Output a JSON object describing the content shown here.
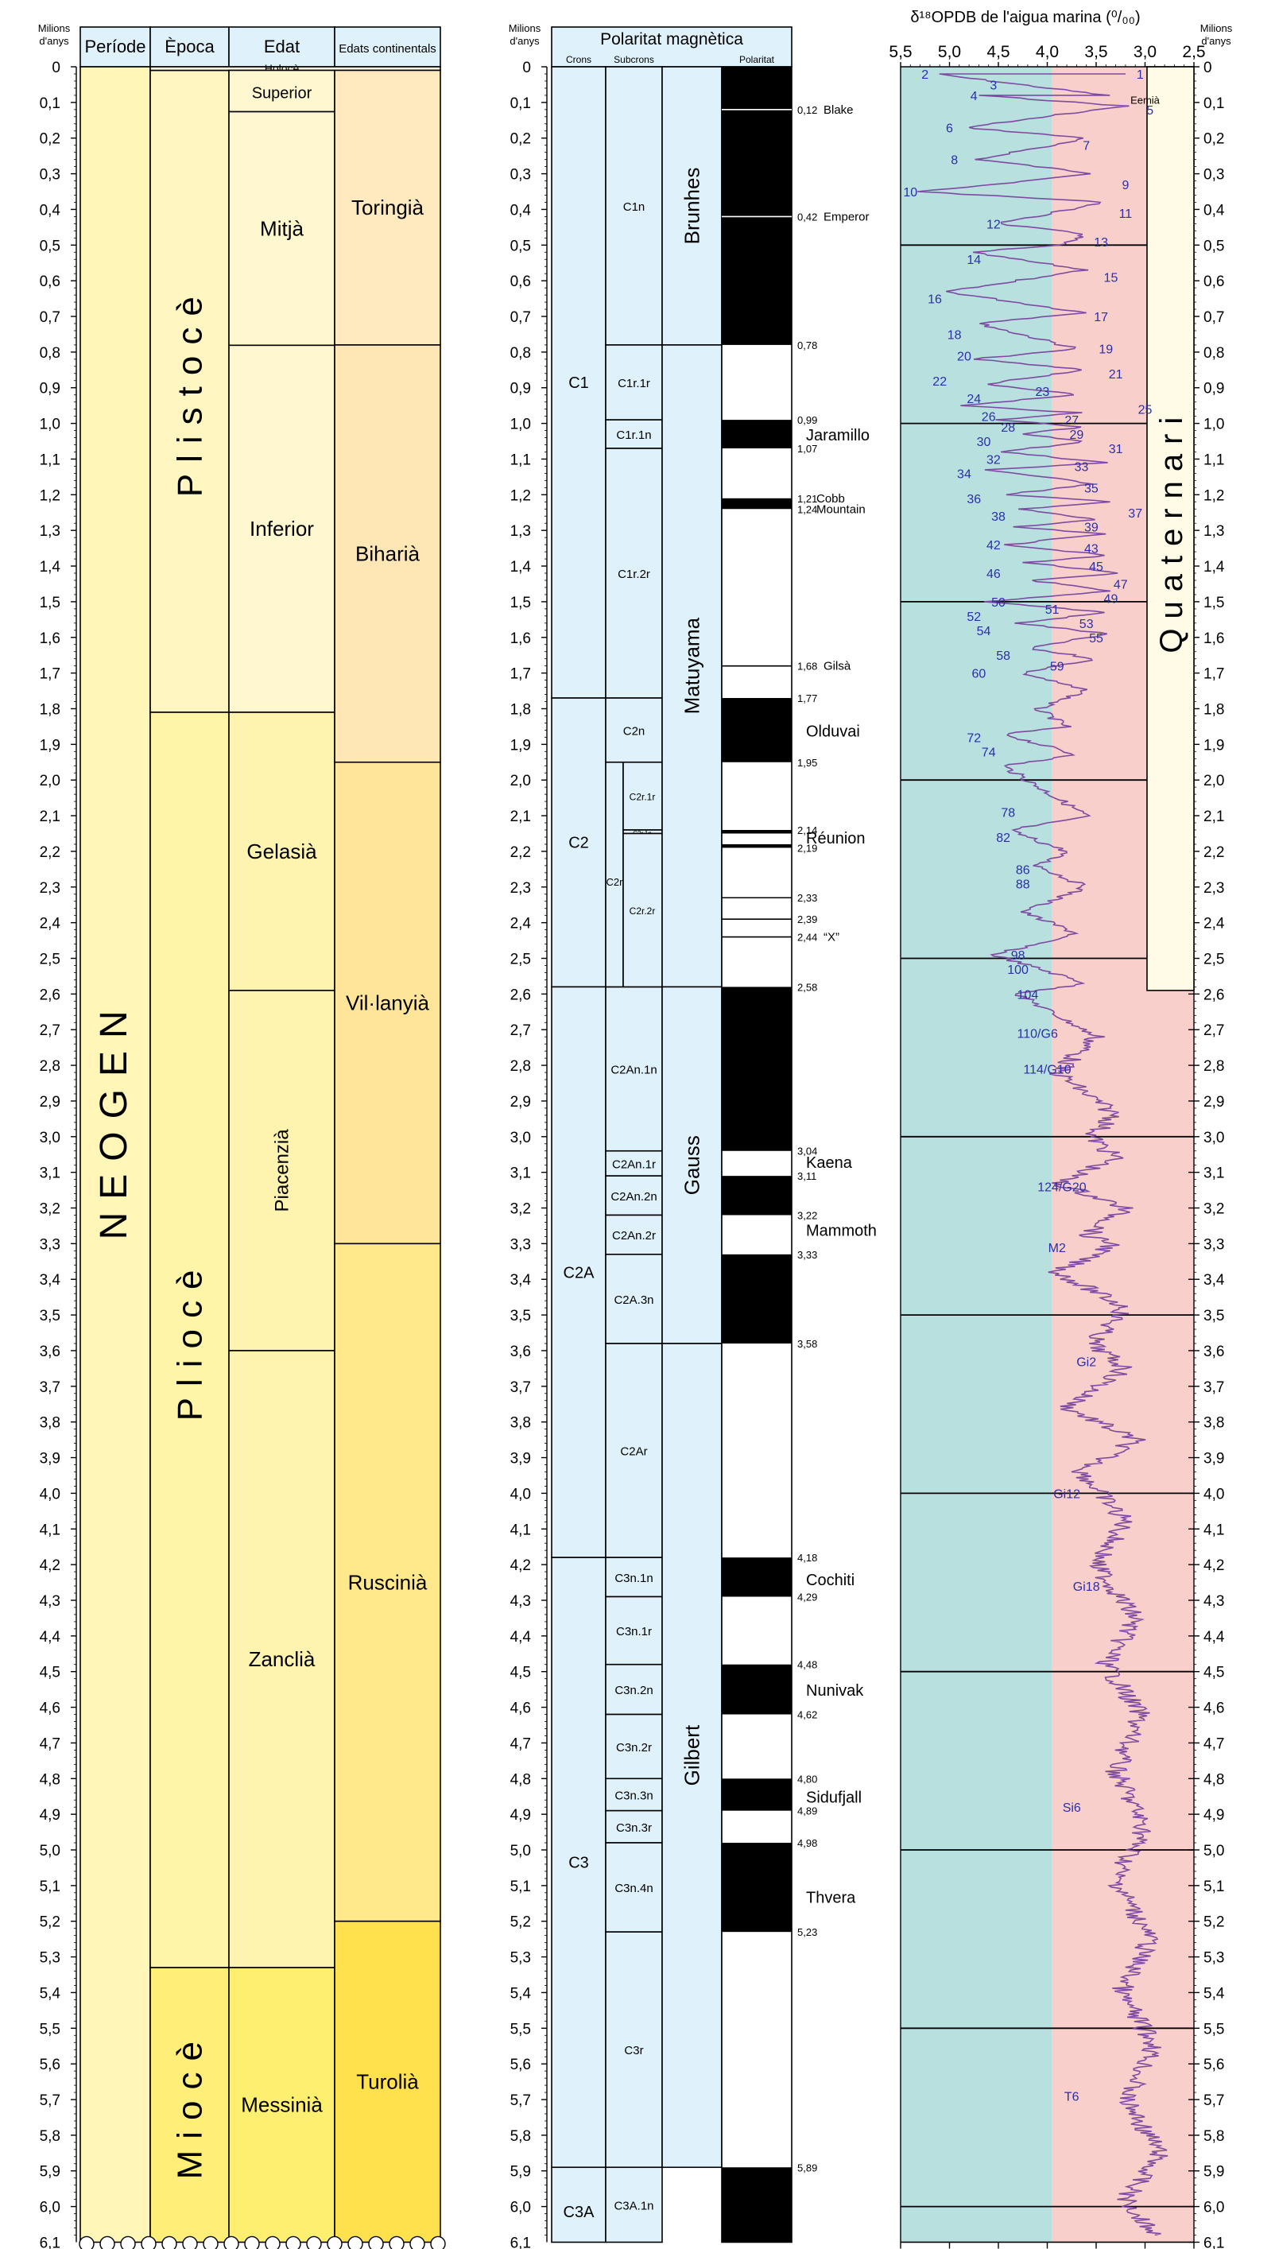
{
  "axis": {
    "unit_label": [
      "Milions",
      "d'anys"
    ],
    "ticks": [
      "0",
      "0,1",
      "0,2",
      "0,3",
      "0,4",
      "0,5",
      "0,6",
      "0,7",
      "0,8",
      "0,9",
      "1,0",
      "1,1",
      "1,2",
      "1,3",
      "1,4",
      "1,5",
      "1,6",
      "1,7",
      "1,8",
      "1,9",
      "2,0",
      "2,1",
      "2,2",
      "2,3",
      "2,4",
      "2,5",
      "2,6",
      "2,7",
      "2,8",
      "2,9",
      "3,0",
      "3,1",
      "3,2",
      "3,3",
      "3,4",
      "3,5",
      "3,6",
      "3,7",
      "3,8",
      "3,9",
      "4,0",
      "4,1",
      "4,2",
      "4,3",
      "4,4",
      "4,5",
      "4,6",
      "4,7",
      "4,8",
      "4,9",
      "5,0",
      "5,1",
      "5,2",
      "5,3",
      "5,4",
      "5,5",
      "5,6",
      "5,7",
      "5,8",
      "5,9",
      "6,0",
      "6,1"
    ]
  },
  "strat": {
    "headers": {
      "period": "Període",
      "epoch": "Època",
      "age": "Edat",
      "continental": "Edats continentals"
    },
    "period": {
      "label": "NEOGEN"
    },
    "epochs": [
      {
        "label": "Plistocè",
        "from": 0.01,
        "to": 1.81,
        "color": "#fff6c2"
      },
      {
        "label": "Pliocè",
        "from": 1.81,
        "to": 5.33,
        "color": "#fff5a8"
      },
      {
        "label": "Miocè",
        "from": 5.33,
        "to": 6.1,
        "color": "#ffef78"
      }
    ],
    "holocene": {
      "label": "Holocè",
      "to": 0.01
    },
    "ages": [
      {
        "label": "Superior",
        "from": 0.01,
        "to": 0.126,
        "color": "#fff7cf",
        "vertical": false
      },
      {
        "label": "Mitjà",
        "from": 0.126,
        "to": 0.781,
        "color": "#fff7cf",
        "vertical": false
      },
      {
        "label": "Inferior",
        "from": 0.781,
        "to": 1.81,
        "color": "#fff7cf",
        "vertical": false
      },
      {
        "label": "Gelasià",
        "from": 1.81,
        "to": 2.59,
        "color": "#fff3b0",
        "vertical": false
      },
      {
        "label": "Piacenzià",
        "from": 2.59,
        "to": 3.6,
        "color": "#fff3b0",
        "vertical": true
      },
      {
        "label": "Zanclià",
        "from": 3.6,
        "to": 5.33,
        "color": "#fff3b0",
        "vertical": false
      },
      {
        "label": "Messinià",
        "from": 5.33,
        "to": 6.1,
        "color": "#ffef70",
        "vertical": false
      }
    ],
    "continental": [
      {
        "label": "Toringià",
        "from": 0.01,
        "to": 0.78,
        "color": "#ffeac0"
      },
      {
        "label": "Biharià",
        "from": 0.78,
        "to": 1.95,
        "color": "#ffe6b5"
      },
      {
        "label": "Vil·lanyià",
        "from": 1.95,
        "to": 3.3,
        "color": "#ffe59a"
      },
      {
        "label": "Ruscinià",
        "from": 3.3,
        "to": 5.2,
        "color": "#ffe98a"
      },
      {
        "label": "Turolià",
        "from": 5.2,
        "to": 6.1,
        "color": "#ffe14d"
      }
    ]
  },
  "polarity": {
    "title": "Polaritat magnètica",
    "col_headers": {
      "crons": "Crons",
      "subcrons": "Subcrons",
      "polarity": "Polaritat"
    },
    "crons": [
      {
        "label": "C1",
        "from": 0,
        "to": 1.77
      },
      {
        "label": "C2",
        "from": 1.77,
        "to": 2.58
      },
      {
        "label": "C2A",
        "from": 2.58,
        "to": 4.18
      },
      {
        "label": "C3",
        "from": 4.18,
        "to": 5.89
      },
      {
        "label": "C3A",
        "from": 5.89,
        "to": 6.1
      }
    ],
    "subcrons": [
      {
        "label": "C1n",
        "from": 0,
        "to": 0.78
      },
      {
        "label": "C1r.1r",
        "from": 0.78,
        "to": 0.99
      },
      {
        "label": "C1r.1n",
        "from": 0.99,
        "to": 1.07
      },
      {
        "label": "C1r.2r",
        "from": 1.07,
        "to": 1.77
      },
      {
        "label": "C2n",
        "from": 1.77,
        "to": 1.95
      },
      {
        "label": "C2An.1n",
        "from": 2.58,
        "to": 3.04
      },
      {
        "label": "C2An.1r",
        "from": 3.04,
        "to": 3.11
      },
      {
        "label": "C2An.2n",
        "from": 3.11,
        "to": 3.22
      },
      {
        "label": "C2An.2r",
        "from": 3.22,
        "to": 3.33
      },
      {
        "label": "C2A.3n",
        "from": 3.33,
        "to": 3.58
      },
      {
        "label": "C2Ar",
        "from": 3.58,
        "to": 4.18
      },
      {
        "label": "C3n.1n",
        "from": 4.18,
        "to": 4.29
      },
      {
        "label": "C3n.1r",
        "from": 4.29,
        "to": 4.48
      },
      {
        "label": "C3n.2n",
        "from": 4.48,
        "to": 4.62
      },
      {
        "label": "C3n.2r",
        "from": 4.62,
        "to": 4.8
      },
      {
        "label": "C3n.3n",
        "from": 4.8,
        "to": 4.89
      },
      {
        "label": "C3n.3r",
        "from": 4.89,
        "to": 4.98
      },
      {
        "label": "C3n.4n",
        "from": 4.98,
        "to": 5.23
      },
      {
        "label": "C3r",
        "from": 5.23,
        "to": 5.89
      },
      {
        "label": "C3A.1n",
        "from": 5.89,
        "to": 6.1
      }
    ],
    "c2r": {
      "label": "C2r",
      "from": 1.95,
      "to": 2.58
    },
    "c2r_sub": [
      {
        "label": "C2r.1r",
        "from": 1.95,
        "to": 2.14
      },
      {
        "label": "C2r.1n",
        "from": 2.14,
        "to": 2.15
      },
      {
        "label": "C2r.2r",
        "from": 2.15,
        "to": 2.58
      }
    ],
    "chrons": [
      {
        "label": "Brunhes",
        "from": 0,
        "to": 0.78
      },
      {
        "label": "Matuyama",
        "from": 0.78,
        "to": 2.58
      },
      {
        "label": "Gauss",
        "from": 2.58,
        "to": 3.58
      },
      {
        "label": "Gilbert",
        "from": 3.58,
        "to": 5.89
      }
    ],
    "normal_bands": [
      [
        0,
        0.78
      ],
      [
        0.99,
        1.07
      ],
      [
        1.21,
        1.24
      ],
      [
        1.77,
        1.95
      ],
      [
        2.14,
        2.15
      ],
      [
        2.18,
        2.19
      ],
      [
        2.58,
        3.04
      ],
      [
        3.11,
        3.22
      ],
      [
        3.33,
        3.58
      ],
      [
        4.18,
        4.29
      ],
      [
        4.48,
        4.62
      ],
      [
        4.8,
        4.89
      ],
      [
        4.98,
        5.23
      ],
      [
        5.89,
        6.1
      ]
    ],
    "excursion_lines": [
      0.12,
      0.42,
      1.68,
      2.33,
      2.39,
      2.44
    ],
    "boundary_labels": [
      {
        "text": "0,12",
        "at": 0.12
      },
      {
        "text": "0,42",
        "at": 0.42
      },
      {
        "text": "0,78",
        "at": 0.78
      },
      {
        "text": "0,99",
        "at": 0.99
      },
      {
        "text": "1,07",
        "at": 1.07
      },
      {
        "text": "1,21",
        "at": 1.21
      },
      {
        "text": "1,24",
        "at": 1.24
      },
      {
        "text": "1,68",
        "at": 1.68
      },
      {
        "text": "1,77",
        "at": 1.77
      },
      {
        "text": "1,95",
        "at": 1.95
      },
      {
        "text": "2,14",
        "at": 2.14
      },
      {
        "text": "2,19",
        "at": 2.19
      },
      {
        "text": "2,33",
        "at": 2.33
      },
      {
        "text": "2,39",
        "at": 2.39
      },
      {
        "text": "2,44",
        "at": 2.44
      },
      {
        "text": "2,58",
        "at": 2.58
      },
      {
        "text": "3,04",
        "at": 3.04
      },
      {
        "text": "3,11",
        "at": 3.11
      },
      {
        "text": "3,22",
        "at": 3.22
      },
      {
        "text": "3,33",
        "at": 3.33
      },
      {
        "text": "3,58",
        "at": 3.58
      },
      {
        "text": "4,18",
        "at": 4.18
      },
      {
        "text": "4,29",
        "at": 4.29
      },
      {
        "text": "4,48",
        "at": 4.48
      },
      {
        "text": "4,62",
        "at": 4.62
      },
      {
        "text": "4,80",
        "at": 4.8
      },
      {
        "text": "4,89",
        "at": 4.89
      },
      {
        "text": "4,98",
        "at": 4.98
      },
      {
        "text": "5,23",
        "at": 5.23
      },
      {
        "text": "5,89",
        "at": 5.89
      }
    ],
    "event_labels": [
      {
        "text": "Blake",
        "at": 0.12,
        "size": "small"
      },
      {
        "text": "Emperor",
        "at": 0.42,
        "size": "small"
      },
      {
        "text": "Jaramillo",
        "at": 1.03,
        "size": "big"
      },
      {
        "text": "Cobb",
        "at": 1.21,
        "size": "small"
      },
      {
        "text": "Mountain",
        "at": 1.24,
        "size": "small"
      },
      {
        "text": "Gilsà",
        "at": 1.68,
        "size": "small"
      },
      {
        "text": "Olduvai",
        "at": 1.86,
        "size": "big"
      },
      {
        "text": "Réunion",
        "at": 2.16,
        "size": "big"
      },
      {
        "text": "“X”",
        "at": 2.44,
        "size": "small"
      },
      {
        "text": "Kaena",
        "at": 3.07,
        "size": "big"
      },
      {
        "text": "Mammoth",
        "at": 3.26,
        "size": "big"
      },
      {
        "text": "Cochiti",
        "at": 4.24,
        "size": "big"
      },
      {
        "text": "Nunivak",
        "at": 4.55,
        "size": "big"
      },
      {
        "text": "Sidufjall",
        "at": 4.85,
        "size": "big"
      },
      {
        "text": "Thvera",
        "at": 5.13,
        "size": "big"
      }
    ]
  },
  "chart_data": {
    "type": "line",
    "title": "δ¹⁸OPDB de l'aigua marina (⁰/₀₀)",
    "xlabel": "δ¹⁸OPDB de l'aigua marina (⁰/₀₀)",
    "ylabel": "Milions d'anys",
    "x_ticks": [
      "5,5",
      "5,0",
      "4,5",
      "4,0",
      "3,5",
      "3,0",
      "2,5"
    ],
    "xlim": [
      5.5,
      2.5
    ],
    "ylim": [
      0,
      6.1
    ],
    "x_reversed": true,
    "background": {
      "cold": "#b7e0df",
      "warm": "#f9cfcc"
    },
    "line_color": "#7d4ba0",
    "series": [
      {
        "x": [
          3.2,
          5.15,
          3.4,
          4.7,
          3.2,
          4.85,
          3.6,
          4.7,
          3.5,
          5.3,
          3.4,
          4.5,
          3.6,
          3.9,
          4.8,
          3.6,
          5.05,
          3.6,
          4.7,
          3.7,
          4.75,
          3.6,
          4.65,
          3.7,
          4.9,
          3.7,
          4.5,
          3.6,
          4.3,
          3.6,
          4.45,
          3.4,
          4.6,
          3.5,
          4.45,
          3.3,
          4.3,
          3.5,
          4.35,
          3.45,
          4.4,
          3.4,
          4.2,
          3.3,
          4.15,
          3.4,
          4.6,
          3.4,
          4.3,
          3.4,
          4.2,
          3.5,
          4.25,
          3.6,
          4.1,
          3.8,
          4.45,
          3.7,
          4.45,
          3.6,
          4.4,
          3.8,
          4.1,
          3.6,
          4.25,
          3.7,
          4.55,
          3.6,
          4.3,
          3.5,
          3.9,
          3.3,
          3.55,
          3.3,
          3.9,
          3.2,
          3.6,
          3.3,
          3.9,
          3.2,
          3.55,
          3.2,
          3.8,
          3.1,
          3.65,
          3.2,
          3.5,
          3.1,
          3.4,
          3.05,
          3.3,
          3.0,
          3.3,
          2.95,
          3.25,
          2.9,
          3.2,
          2.85,
          3.2,
          2.9
        ],
        "y": [
          0.02,
          0.02,
          0.08,
          0.08,
          0.11,
          0.17,
          0.2,
          0.26,
          0.3,
          0.35,
          0.38,
          0.44,
          0.47,
          0.5,
          0.52,
          0.57,
          0.63,
          0.69,
          0.72,
          0.79,
          0.82,
          0.85,
          0.89,
          0.92,
          0.95,
          0.97,
          0.99,
          1.01,
          1.03,
          1.05,
          1.08,
          1.11,
          1.13,
          1.17,
          1.2,
          1.22,
          1.24,
          1.27,
          1.29,
          1.31,
          1.34,
          1.37,
          1.39,
          1.42,
          1.44,
          1.47,
          1.5,
          1.53,
          1.56,
          1.59,
          1.63,
          1.66,
          1.7,
          1.75,
          1.8,
          1.85,
          1.87,
          1.93,
          1.96,
          2.1,
          2.14,
          2.2,
          2.24,
          2.3,
          2.37,
          2.43,
          2.49,
          2.57,
          2.6,
          2.72,
          2.82,
          2.94,
          3.0,
          3.06,
          3.13,
          3.2,
          3.28,
          3.3,
          3.38,
          3.48,
          3.58,
          3.65,
          3.76,
          3.85,
          3.94,
          4.08,
          4.2,
          4.35,
          4.48,
          4.62,
          4.78,
          4.94,
          5.08,
          5.25,
          5.4,
          5.55,
          5.7,
          5.85,
          5.98,
          6.08
        ]
      }
    ],
    "isotope_stage_labels": [
      {
        "text": "1",
        "x": 3.05,
        "y": 0.02
      },
      {
        "text": "2",
        "x": 5.25,
        "y": 0.02
      },
      {
        "text": "3",
        "x": 4.55,
        "y": 0.05
      },
      {
        "text": "4",
        "x": 4.75,
        "y": 0.08
      },
      {
        "text": "5",
        "x": 2.95,
        "y": 0.12
      },
      {
        "text": "6",
        "x": 5.0,
        "y": 0.17
      },
      {
        "text": "7",
        "x": 3.6,
        "y": 0.22
      },
      {
        "text": "8",
        "x": 4.95,
        "y": 0.26
      },
      {
        "text": "9",
        "x": 3.2,
        "y": 0.33
      },
      {
        "text": "10",
        "x": 5.4,
        "y": 0.35
      },
      {
        "text": "11",
        "x": 3.2,
        "y": 0.41
      },
      {
        "text": "12",
        "x": 4.55,
        "y": 0.44
      },
      {
        "text": "13",
        "x": 3.45,
        "y": 0.49
      },
      {
        "text": "14",
        "x": 4.75,
        "y": 0.54
      },
      {
        "text": "15",
        "x": 3.35,
        "y": 0.59
      },
      {
        "text": "16",
        "x": 5.15,
        "y": 0.65
      },
      {
        "text": "17",
        "x": 3.45,
        "y": 0.7
      },
      {
        "text": "18",
        "x": 4.95,
        "y": 0.75
      },
      {
        "text": "19",
        "x": 3.4,
        "y": 0.79
      },
      {
        "text": "20",
        "x": 4.85,
        "y": 0.81
      },
      {
        "text": "21",
        "x": 3.3,
        "y": 0.86
      },
      {
        "text": "22",
        "x": 5.1,
        "y": 0.88
      },
      {
        "text": "23",
        "x": 4.05,
        "y": 0.91
      },
      {
        "text": "24",
        "x": 4.75,
        "y": 0.93
      },
      {
        "text": "25",
        "x": 3.0,
        "y": 0.96
      },
      {
        "text": "26",
        "x": 4.6,
        "y": 0.98
      },
      {
        "text": "27",
        "x": 3.75,
        "y": 0.99
      },
      {
        "text": "28",
        "x": 4.4,
        "y": 1.01
      },
      {
        "text": "29",
        "x": 3.7,
        "y": 1.03
      },
      {
        "text": "30",
        "x": 4.65,
        "y": 1.05
      },
      {
        "text": "31",
        "x": 3.3,
        "y": 1.07
      },
      {
        "text": "32",
        "x": 4.55,
        "y": 1.1
      },
      {
        "text": "33",
        "x": 3.65,
        "y": 1.12
      },
      {
        "text": "34",
        "x": 4.85,
        "y": 1.14
      },
      {
        "text": "35",
        "x": 3.55,
        "y": 1.18
      },
      {
        "text": "36",
        "x": 4.75,
        "y": 1.21
      },
      {
        "text": "37",
        "x": 3.1,
        "y": 1.25
      },
      {
        "text": "38",
        "x": 4.5,
        "y": 1.26
      },
      {
        "text": "39",
        "x": 3.55,
        "y": 1.29
      },
      {
        "text": "42",
        "x": 4.55,
        "y": 1.34
      },
      {
        "text": "43",
        "x": 3.55,
        "y": 1.35
      },
      {
        "text": "45",
        "x": 3.5,
        "y": 1.4
      },
      {
        "text": "46",
        "x": 4.55,
        "y": 1.42
      },
      {
        "text": "47",
        "x": 3.25,
        "y": 1.45
      },
      {
        "text": "49",
        "x": 3.35,
        "y": 1.49
      },
      {
        "text": "50",
        "x": 4.5,
        "y": 1.5
      },
      {
        "text": "51",
        "x": 3.95,
        "y": 1.52
      },
      {
        "text": "52",
        "x": 4.75,
        "y": 1.54
      },
      {
        "text": "53",
        "x": 3.6,
        "y": 1.56
      },
      {
        "text": "54",
        "x": 4.65,
        "y": 1.58
      },
      {
        "text": "55",
        "x": 3.5,
        "y": 1.6
      },
      {
        "text": "58",
        "x": 4.45,
        "y": 1.65
      },
      {
        "text": "59",
        "x": 3.9,
        "y": 1.68
      },
      {
        "text": "60",
        "x": 4.7,
        "y": 1.7
      },
      {
        "text": "72",
        "x": 4.75,
        "y": 1.88
      },
      {
        "text": "74",
        "x": 4.6,
        "y": 1.92
      },
      {
        "text": "78",
        "x": 4.4,
        "y": 2.09
      },
      {
        "text": "82",
        "x": 4.45,
        "y": 2.16
      },
      {
        "text": "86",
        "x": 4.25,
        "y": 2.25
      },
      {
        "text": "88",
        "x": 4.25,
        "y": 2.29
      },
      {
        "text": "98",
        "x": 4.3,
        "y": 2.49
      },
      {
        "text": "100",
        "x": 4.3,
        "y": 2.53
      },
      {
        "text": "104",
        "x": 4.2,
        "y": 2.6
      },
      {
        "text": "110/G6",
        "x": 4.1,
        "y": 2.71
      },
      {
        "text": "114/G10",
        "x": 4.0,
        "y": 2.81
      },
      {
        "text": "124/G20",
        "x": 3.85,
        "y": 3.14
      },
      {
        "text": "M2",
        "x": 3.9,
        "y": 3.31
      },
      {
        "text": "Gi2",
        "x": 3.6,
        "y": 3.63
      },
      {
        "text": "Gi12",
        "x": 3.8,
        "y": 4.0
      },
      {
        "text": "Gi18",
        "x": 3.6,
        "y": 4.26
      },
      {
        "text": "Si6",
        "x": 3.75,
        "y": 4.88
      },
      {
        "text": "T6",
        "x": 3.75,
        "y": 5.69
      },
      {
        "text": "Eemià",
        "x": 3.0,
        "y": 0.09
      }
    ],
    "x_range_marks": [
      "5,5",
      "5,0",
      "4,5",
      "4,0",
      "3,5",
      "3,0",
      "2,5"
    ]
  },
  "quaternari": {
    "label": "Quaternari",
    "to": 2.59,
    "color": "#fffbe6"
  },
  "major_lines": [
    0.5,
    1.0,
    1.5,
    2.0,
    2.5,
    3.0,
    3.5,
    4.0,
    4.5,
    5.0,
    5.5,
    6.0
  ]
}
